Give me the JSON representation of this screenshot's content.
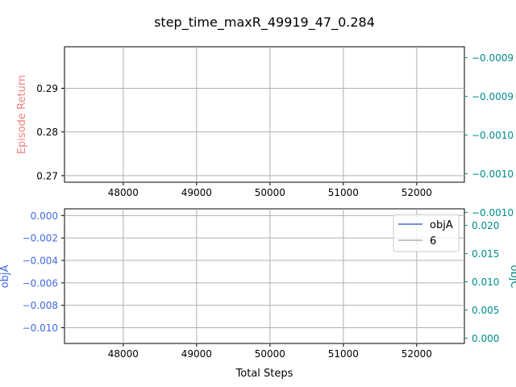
{
  "colors": {
    "return_label": "#f08080",
    "objA": "#4169e1",
    "objC": "#008b8b",
    "grid": "#b0b0b0",
    "axis": "#000000"
  },
  "chart_data": {
    "title": "step_time_maxR_49919_47_0.284",
    "xlabel": "Total Steps",
    "xticks": [
      48000,
      49000,
      50000,
      51000,
      52000
    ],
    "xlim": [
      47200,
      52650
    ],
    "top": {
      "type": "line",
      "ylabel_left": "Episode Return",
      "ylim_left": [
        0.2685,
        0.2995
      ],
      "yticks_left": [
        0.27,
        0.28,
        0.29
      ],
      "yticks_left_labels": [
        "0.27",
        "0.28",
        "0.29"
      ],
      "ylim_right": [
        -0.001061,
        -0.000886
      ],
      "yticks_right": [
        -0.0009,
        -0.00095,
        -0.001,
        -0.00105,
        -0.0011
      ],
      "yticks_right_labels": [
        "−0.0009",
        "−0.0009",
        "−0.0010",
        "−0.0010",
        "−0.0010"
      ],
      "series": []
    },
    "bottom": {
      "type": "line",
      "ylabel_left": "objA",
      "ylabel_right": "objC",
      "ylim_left": [
        -0.0114,
        0.0006
      ],
      "yticks_left": [
        0.0,
        -0.002,
        -0.004,
        -0.006,
        -0.008,
        -0.01
      ],
      "yticks_left_labels": [
        "0.000",
        "−0.002",
        "−0.004",
        "−0.006",
        "−0.008",
        "−0.010"
      ],
      "ylim_right": [
        -0.00095,
        0.02295
      ],
      "yticks_right": [
        0.0,
        0.005,
        0.01,
        0.015,
        0.02
      ],
      "yticks_right_labels": [
        "0.000",
        "0.005",
        "0.010",
        "0.015",
        "0.020"
      ],
      "legend_position": "upper right",
      "legend": [
        {
          "label": "objA",
          "color": "#4169e1"
        },
        {
          "label": "6",
          "color": "#b0b0b0"
        }
      ],
      "series": []
    }
  }
}
